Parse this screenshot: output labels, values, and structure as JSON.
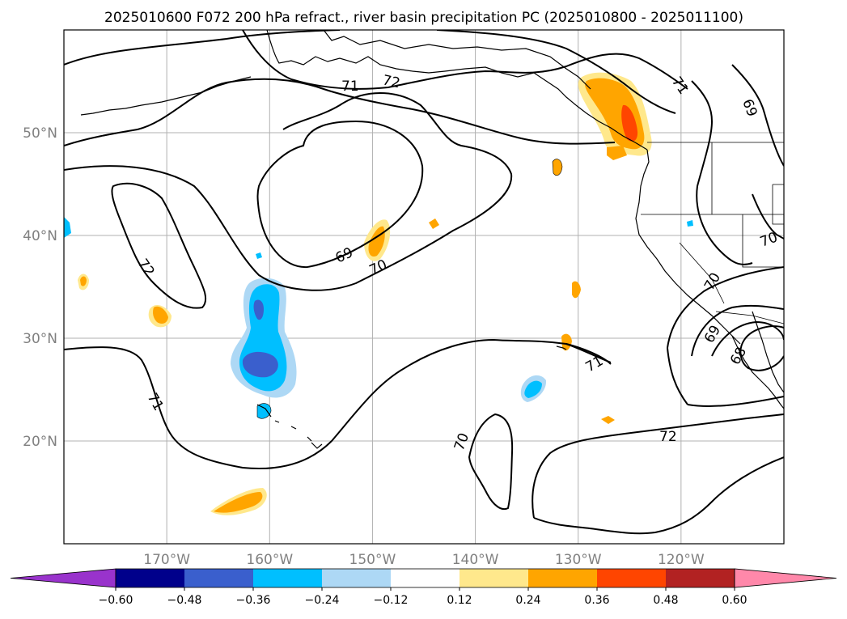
{
  "title": "2025010600 F072 200 hPa refract., river basin precipitation PC (2025010800 - 2025011100)",
  "map": {
    "lon_range": [
      -180,
      -110
    ],
    "lat_range": [
      10,
      60
    ],
    "lat_ticks": [
      {
        "lat": 50,
        "label": "50°N"
      },
      {
        "lat": 40,
        "label": "40°N"
      },
      {
        "lat": 30,
        "label": "30°N"
      },
      {
        "lat": 20,
        "label": "20°N"
      }
    ],
    "lon_ticks": [
      {
        "lon": -170,
        "label": "170°W"
      },
      {
        "lon": -160,
        "label": "160°W"
      },
      {
        "lon": -150,
        "label": "150°W"
      },
      {
        "lon": -140,
        "label": "140°W"
      },
      {
        "lon": -130,
        "label": "130°W"
      },
      {
        "lon": -120,
        "label": "120°W"
      }
    ],
    "gridlines": true,
    "contour_labels": [
      "72",
      "71",
      "71",
      "69",
      "69",
      "70",
      "72",
      "71",
      "71",
      "70",
      "72",
      "70",
      "70",
      "69",
      "68"
    ]
  },
  "colorbar": {
    "colors": [
      "#9933cc",
      "#00008b",
      "#3a5fcd",
      "#00bfff",
      "#add8f5",
      "#ffffff",
      "#ffe88c",
      "#ffa500",
      "#ff4500",
      "#b22222",
      "#ff88aa"
    ],
    "tick_labels": [
      "−0.60",
      "−0.48",
      "−0.36",
      "−0.24",
      "−0.12",
      "0.12",
      "0.24",
      "0.36",
      "0.48",
      "0.60"
    ]
  }
}
